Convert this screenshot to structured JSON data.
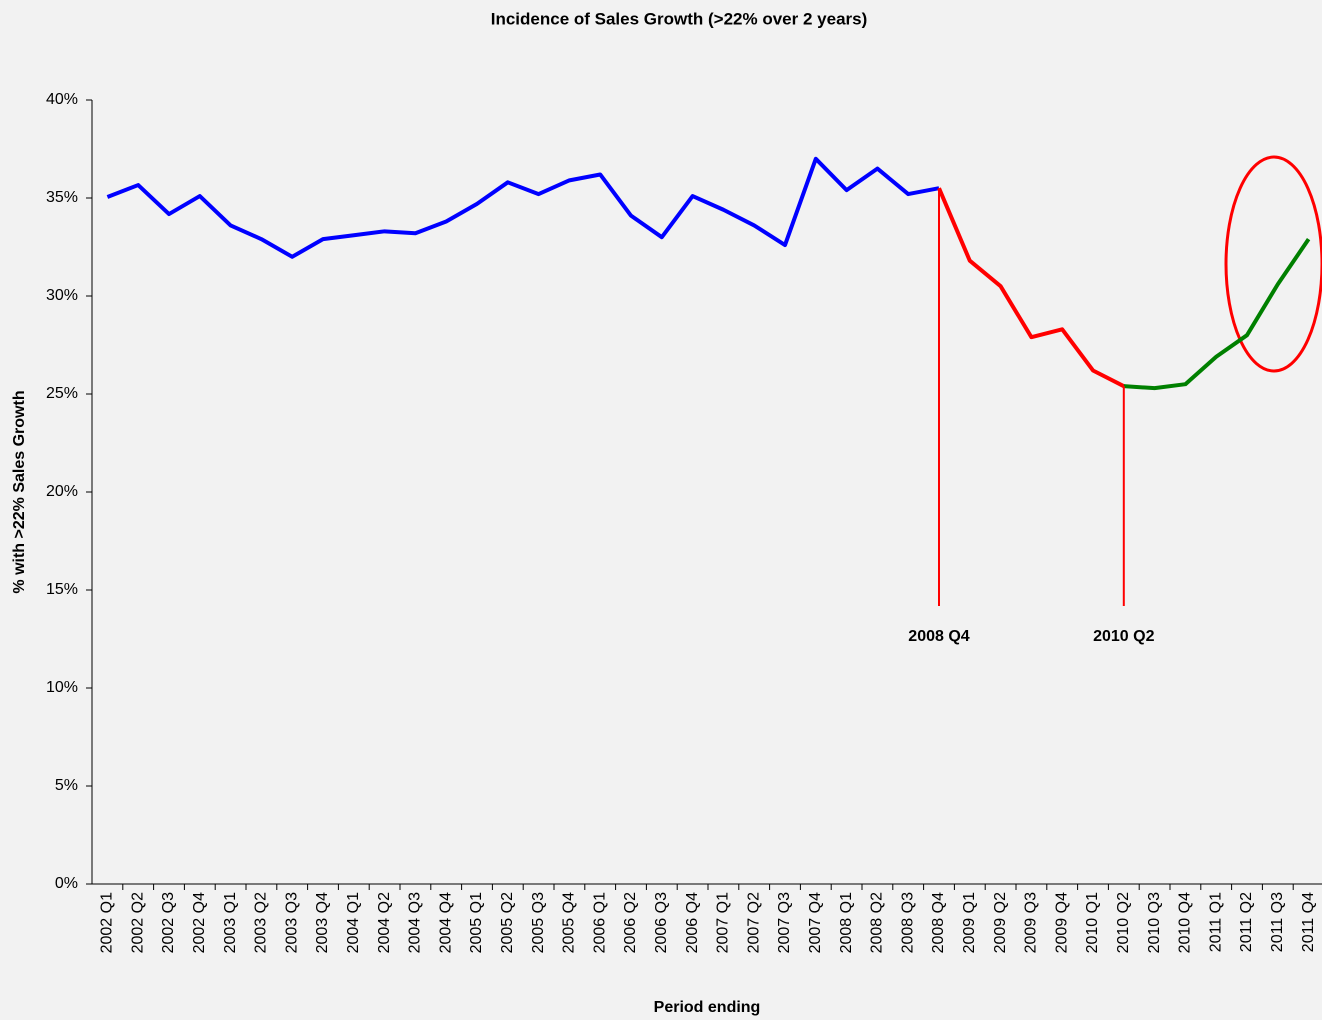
{
  "chart_data": {
    "type": "line",
    "title": "Incidence of Sales Growth (>22% over 2 years)",
    "x_label": "Period ending",
    "y_label": "% with >22% Sales Growth",
    "categories": [
      "2002 Q1",
      "2002 Q2",
      "2002 Q3",
      "2002 Q4",
      "2003 Q1",
      "2003 Q2",
      "2003 Q3",
      "2003 Q4",
      "2004 Q1",
      "2004 Q2",
      "2004 Q3",
      "2004 Q4",
      "2005 Q1",
      "2005 Q2",
      "2005 Q3",
      "2005 Q4",
      "2006 Q1",
      "2006 Q2",
      "2006 Q3",
      "2006 Q4",
      "2007 Q1",
      "2007 Q2",
      "2007 Q3",
      "2007 Q4",
      "2008 Q1",
      "2008 Q2",
      "2008 Q3",
      "2008 Q4",
      "2009 Q1",
      "2009 Q2",
      "2009 Q3",
      "2009 Q4",
      "2010 Q1",
      "2010 Q2",
      "2010 Q3",
      "2010 Q4",
      "2011 Q1",
      "2011 Q2",
      "2011 Q3",
      "2011 Q4"
    ],
    "series": [
      {
        "color": "#0000ff",
        "values": [
          35.05,
          35.66,
          34.18,
          35.1,
          33.6,
          32.9,
          32.0,
          32.9,
          33.1,
          33.3,
          33.2,
          33.8,
          34.7,
          35.8,
          35.2,
          35.9,
          36.2,
          34.1,
          33.0,
          35.1,
          34.4,
          33.6,
          32.6,
          37.0,
          35.4,
          36.5,
          35.2,
          35.5,
          null,
          null,
          null,
          null,
          null,
          null,
          null,
          null,
          null,
          null,
          null,
          null
        ]
      },
      {
        "color": "#ff0000",
        "values": [
          null,
          null,
          null,
          null,
          null,
          null,
          null,
          null,
          null,
          null,
          null,
          null,
          null,
          null,
          null,
          null,
          null,
          null,
          null,
          null,
          null,
          null,
          null,
          null,
          null,
          null,
          null,
          35.5,
          31.8,
          30.5,
          27.9,
          28.3,
          26.2,
          25.4,
          null,
          null,
          null,
          null,
          null,
          null
        ]
      },
      {
        "color": "#008000",
        "values": [
          null,
          null,
          null,
          null,
          null,
          null,
          null,
          null,
          null,
          null,
          null,
          null,
          null,
          null,
          null,
          null,
          null,
          null,
          null,
          null,
          null,
          null,
          null,
          null,
          null,
          null,
          null,
          null,
          null,
          null,
          null,
          null,
          null,
          25.4,
          25.3,
          25.5,
          26.9,
          28.0,
          30.6,
          32.9
        ]
      }
    ],
    "annotations": [
      "2008 Q4",
      "2010 Q2"
    ],
    "ylim": [
      0,
      40
    ],
    "yticks": [
      {
        "value": 0,
        "label": "0%"
      },
      {
        "value": 5,
        "label": "5%"
      },
      {
        "value": 10,
        "label": "10%"
      },
      {
        "value": 15,
        "label": "15%"
      },
      {
        "value": 20,
        "label": "20%"
      },
      {
        "value": 25,
        "label": "25%"
      },
      {
        "value": 30,
        "label": "30%"
      },
      {
        "value": 35,
        "label": "35%"
      },
      {
        "value": 40,
        "label": "40%"
      }
    ],
    "grid": false
  }
}
